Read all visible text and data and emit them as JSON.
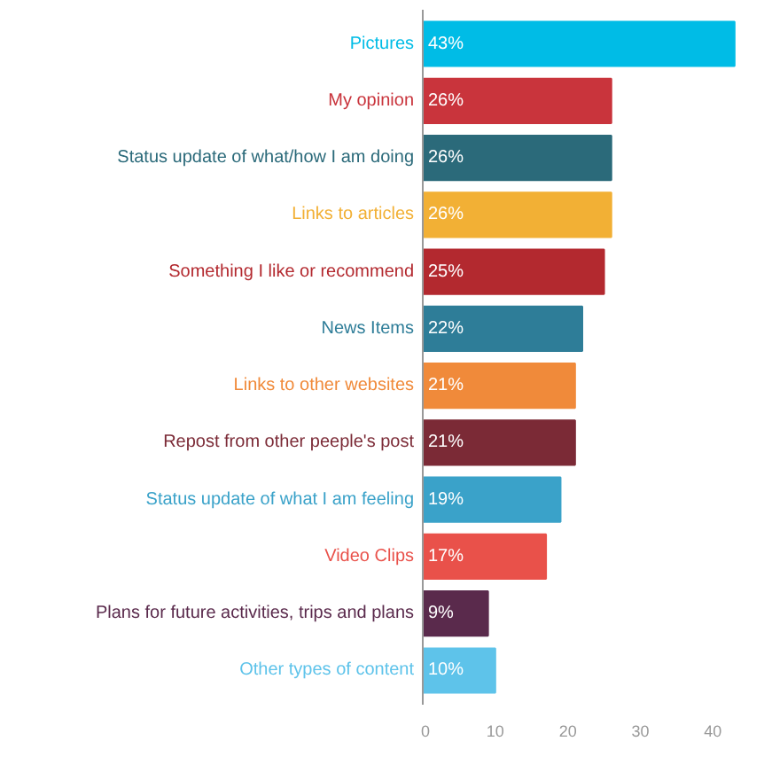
{
  "chart_data": {
    "type": "bar",
    "orientation": "horizontal",
    "categories": [
      "Pictures",
      "My opinion",
      "Status update of what/how I am doing",
      "Links to articles",
      "Something I like or recommend",
      "News Items",
      "Links to other websites",
      "Repost from other peeple's post",
      "Status update of what I am feeling",
      "Video Clips",
      "Plans for future activities, trips and plans",
      "Other types of content"
    ],
    "values": [
      43,
      26,
      26,
      26,
      25,
      22,
      21,
      21,
      19,
      17,
      9,
      10
    ],
    "value_labels": [
      "43%",
      "26%",
      "26%",
      "26%",
      "25%",
      "22%",
      "21%",
      "21%",
      "19%",
      "17%",
      "9%",
      "10%"
    ],
    "colors": [
      "#00bce6",
      "#c9343c",
      "#2b6a7a",
      "#f2b035",
      "#b3292f",
      "#2e7d98",
      "#f08a3a",
      "#7b2a36",
      "#3aa2c9",
      "#e9514a",
      "#5a2a4c",
      "#5ec3ea"
    ],
    "xlim": [
      0,
      44
    ],
    "xticks": [
      0,
      10,
      20,
      30,
      40
    ],
    "grid": false
  }
}
